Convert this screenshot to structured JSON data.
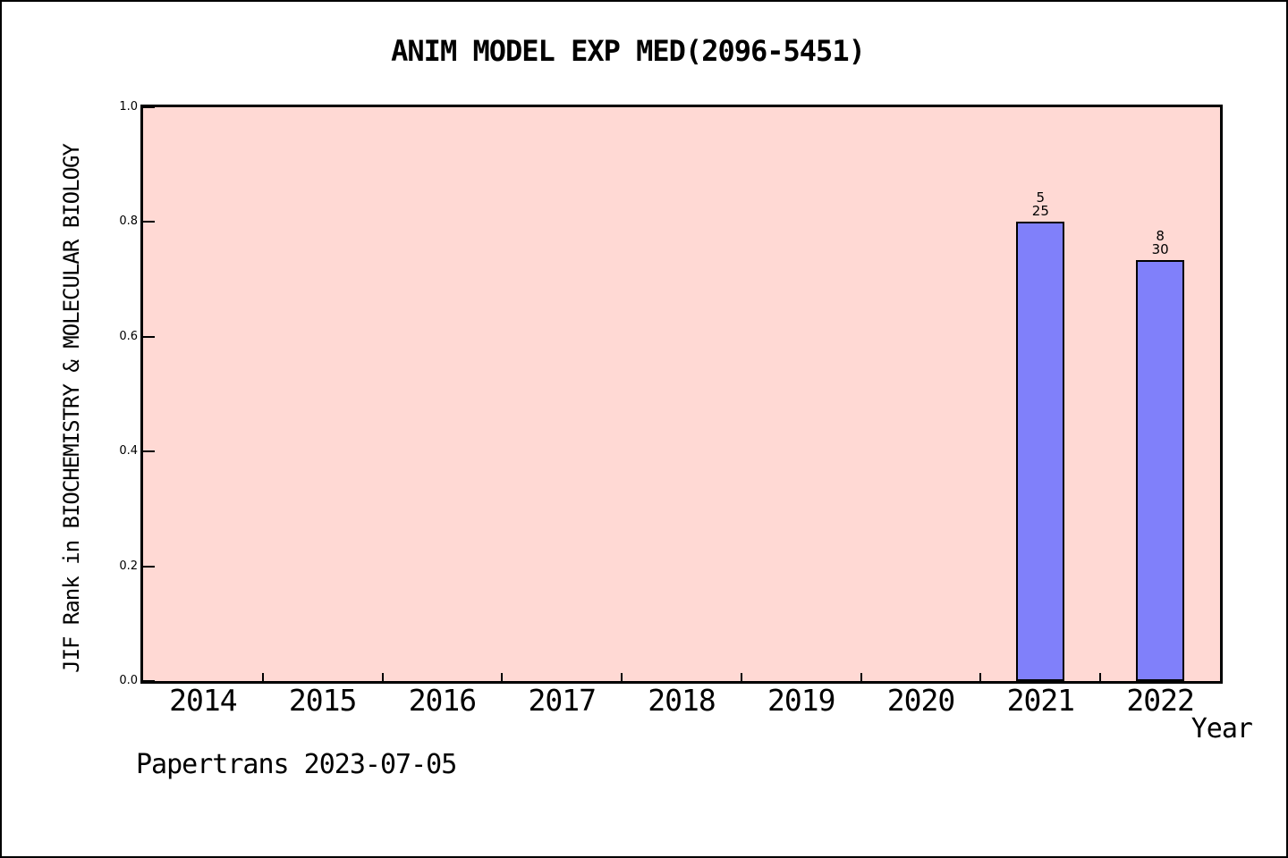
{
  "footer": "Papertrans 2023-07-05",
  "chart_data": {
    "type": "bar",
    "title": "ANIM MODEL EXP MED(2096-5451)",
    "xlabel": "Year",
    "ylabel": "JIF Rank in BIOCHEMISTRY & MOLECULAR BIOLOGY",
    "categories": [
      "2014",
      "2015",
      "2016",
      "2017",
      "2018",
      "2019",
      "2020",
      "2021",
      "2022"
    ],
    "bars": [
      {
        "category": "2021",
        "value": 0.8,
        "label_rank": "5",
        "label_total": "25"
      },
      {
        "category": "2022",
        "value": 0.7333,
        "label_rank": "8",
        "label_total": "30"
      }
    ],
    "y_ticks": [
      "0.0",
      "0.2",
      "0.4",
      "0.6",
      "0.8",
      "1.0"
    ],
    "ylim": [
      0.0,
      1.0
    ],
    "grid": "off",
    "legend": "none",
    "colors": {
      "bar_fill": "#8080fa",
      "bar_edge": "#000000",
      "plot_background": "#ffd9d4",
      "page_background": "#ffffff",
      "axis": "#000000",
      "text": "#000000"
    }
  }
}
